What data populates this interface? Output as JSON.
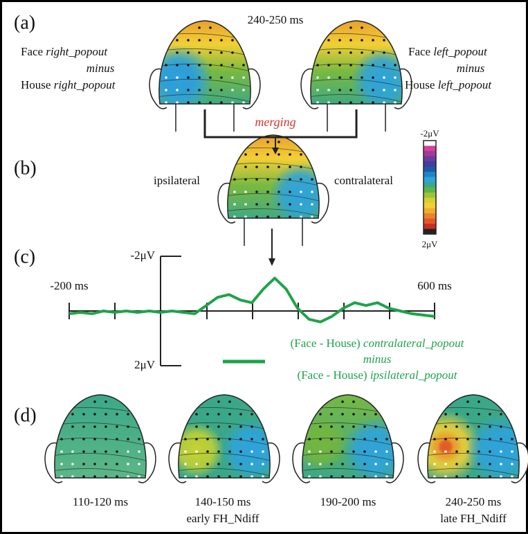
{
  "panel_labels": [
    "(a)",
    "(b)",
    "(c)",
    "(d)"
  ],
  "panel_a": {
    "time": "240-250 ms",
    "left": {
      "word1": "Face",
      "cond1": "right_popout",
      "op": "minus",
      "word2": "House",
      "cond2": "right_popout"
    },
    "right": {
      "word1": "Face",
      "cond1": "left_popout",
      "op": "minus",
      "word2": "House",
      "cond2": "left_popout"
    },
    "merge": "merging"
  },
  "panel_b": {
    "left": "ipsilateral",
    "right": "contralateral"
  },
  "colorbar": {
    "top": "-2μV",
    "bottom": "2μV"
  },
  "panel_c": {
    "xlim": [
      -200,
      600
    ],
    "ylim": [
      -2,
      2
    ],
    "xticks": [
      {
        "value": -200,
        "label": "-200 ms"
      },
      {
        "value": 600,
        "label": "600 ms"
      }
    ],
    "yticks": [
      {
        "value": -2,
        "label": "-2μV"
      },
      {
        "value": 2,
        "label": "2μV"
      }
    ],
    "color": "#1ea34a",
    "x": [
      -200,
      -175,
      -150,
      -125,
      -100,
      -75,
      -50,
      -25,
      0,
      25,
      50,
      75,
      100,
      125,
      150,
      175,
      200,
      225,
      250,
      275,
      300,
      325,
      350,
      375,
      400,
      425,
      450,
      475,
      500,
      525,
      550,
      575,
      600
    ],
    "values": [
      0.1,
      0.05,
      0.1,
      0.0,
      0.05,
      0.0,
      0.05,
      0.0,
      0.05,
      0.0,
      0.05,
      0.1,
      -0.2,
      -0.5,
      -0.6,
      -0.4,
      -0.3,
      -0.8,
      -1.2,
      -0.8,
      -0.1,
      0.3,
      0.4,
      0.2,
      -0.1,
      -0.3,
      -0.2,
      -0.3,
      -0.1,
      0.0,
      0.1,
      0.15,
      0.2
    ],
    "legend": {
      "prefix1": "(Face - House)",
      "cond1": "contralateral_popout",
      "op": "minus",
      "prefix2": "(Face - House)",
      "cond2": "ipsilateral_popout"
    }
  },
  "panel_d": [
    {
      "time": "110-120 ms"
    },
    {
      "time": "140-150 ms",
      "note": "early FH_Ndiff"
    },
    {
      "time": "190-200 ms"
    },
    {
      "time": "240-250 ms",
      "note": "late FH_Ndiff"
    }
  ]
}
